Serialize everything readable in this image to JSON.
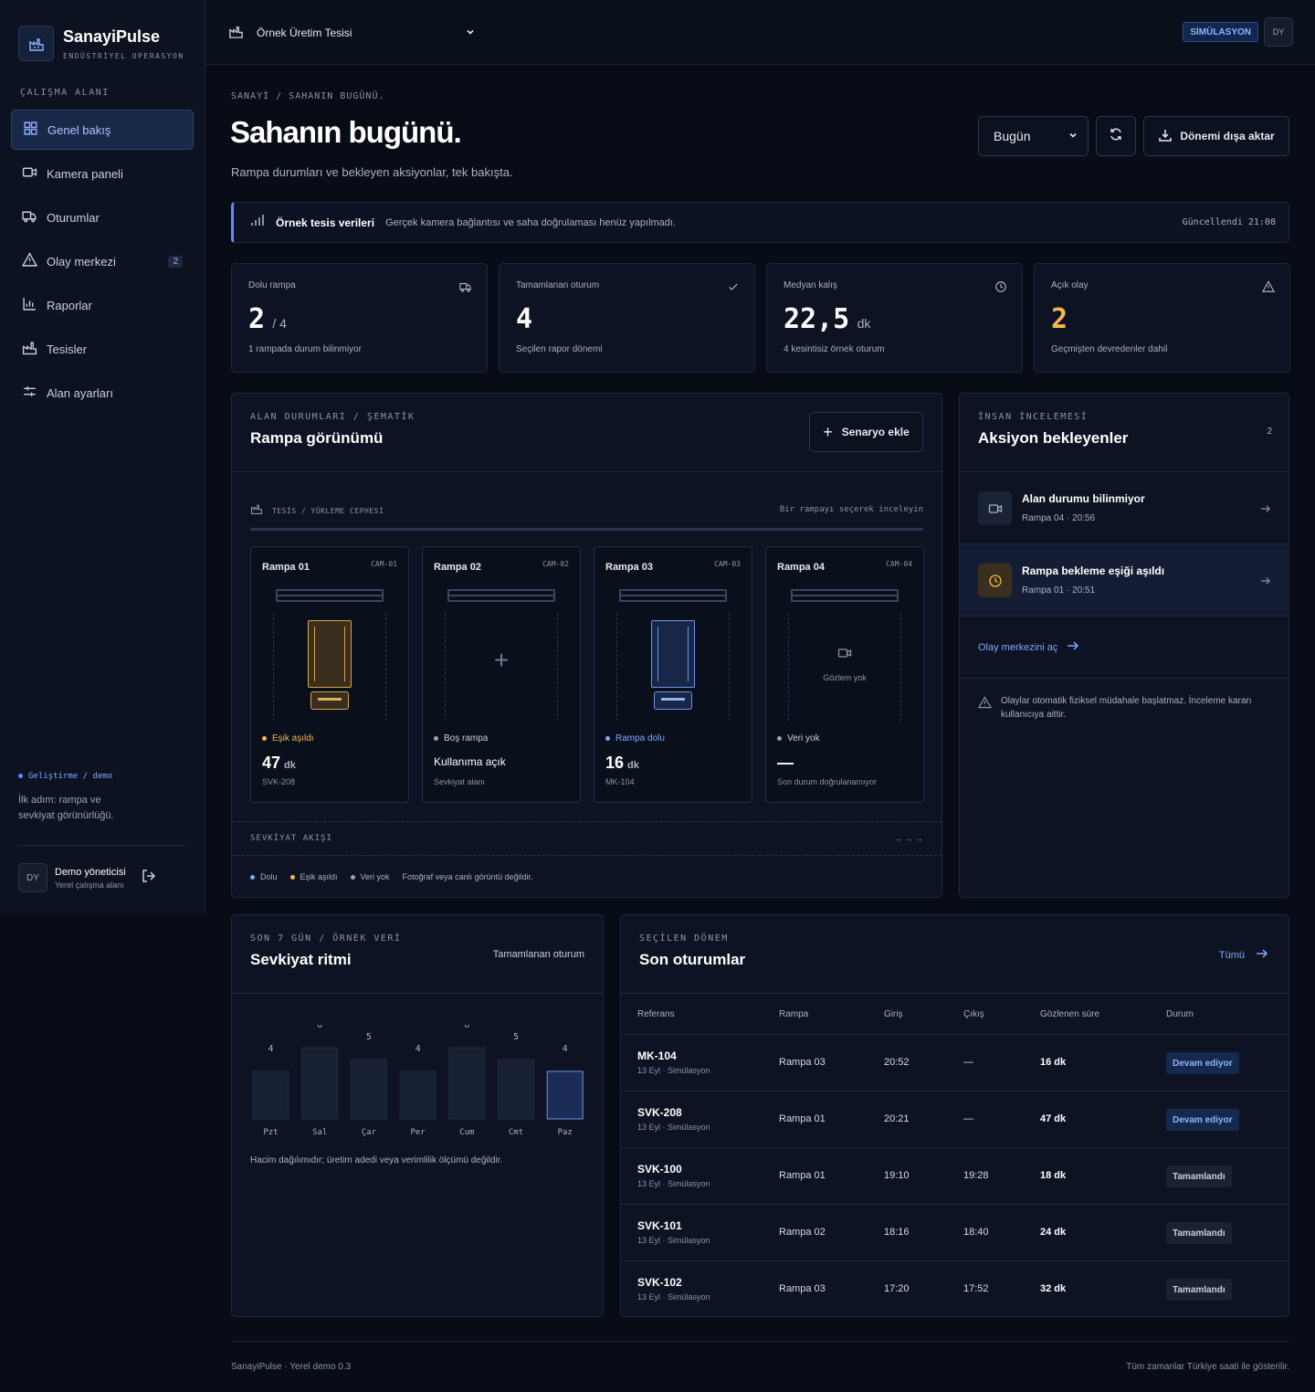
{
  "brand": {
    "name": "SanayiPulse",
    "subtitle": "ENDÜSTRİYEL OPERASYON"
  },
  "sidebar": {
    "section_label": "ÇALIŞMA ALANI",
    "items": [
      {
        "label": "Genel bakış",
        "icon": "grid-icon",
        "active": true
      },
      {
        "label": "Kamera paneli",
        "icon": "camera-icon"
      },
      {
        "label": "Oturumlar",
        "icon": "truck-icon"
      },
      {
        "label": "Olay merkezi",
        "icon": "alert-icon",
        "badge": "2"
      },
      {
        "label": "Raporlar",
        "icon": "bar-chart-icon"
      },
      {
        "label": "Tesisler",
        "icon": "factory-icon"
      },
      {
        "label": "Alan ayarları",
        "icon": "sliders-icon"
      }
    ],
    "env": "Geliştirme / demo",
    "env_note": "İlk adım: rampa ve sevkiyat görünürlüğü.",
    "user": {
      "initials": "DY",
      "name": "Demo yöneticisi",
      "role": "Yerel çalışma alanı"
    }
  },
  "topbar": {
    "site": "Örnek Üretim Tesisi",
    "sim": "SİMÜLASYON",
    "initials": "DY"
  },
  "page": {
    "breadcrumb": "SANAYİ / SAHANIN BUGÜNÜ.",
    "title": "Sahanın bugünü.",
    "subtitle": "Rampa durumları ve bekleyen aksiyonlar, tek bakışta.",
    "period": "Bugün",
    "export": "Dönemi dışa aktar"
  },
  "notice": {
    "title": "Örnek tesis verileri",
    "desc": "Gerçek kamera bağlantısı ve saha doğrulaması henüz yapılmadı.",
    "updated": "Güncellendi 21:08"
  },
  "stats": [
    {
      "label": "Dolu rampa",
      "value": "2",
      "suffix": "/ 4",
      "note": "1 rampada durum bilinmiyor",
      "icon": "truck-icon",
      "color": "#ffffff"
    },
    {
      "label": "Tamamlanan oturum",
      "value": "4",
      "suffix": "",
      "note": "Seçilen rapor dönemi",
      "icon": "check-icon",
      "color": "#ffffff"
    },
    {
      "label": "Medyan kalış",
      "value": "22,5",
      "suffix": "dk",
      "note": "4 kesintisiz örnek oturum",
      "icon": "clock-icon",
      "color": "#ffffff"
    },
    {
      "label": "Açık olay",
      "value": "2",
      "suffix": "",
      "note": "Geçmişten devredenler dahil",
      "icon": "alert-icon",
      "color": "#f5b84a"
    }
  ],
  "ramp_panel": {
    "kicker": "ALAN DURUMLARI / ŞEMATİK",
    "title": "Rampa görünümü",
    "add": "Senaryo ekle",
    "facade": "TESİS / YÜKLEME CEPHESİ",
    "hint": "Bir rampayı seçerek inceleyin",
    "ramps": [
      {
        "name": "Rampa 01",
        "cam": "CAM-01",
        "state": "Eşik aşıldı",
        "state_color": "#f5b84a",
        "value": "47",
        "unit": "dk",
        "ref": "SVK-208",
        "kind": "warn"
      },
      {
        "name": "Rampa 02",
        "cam": "CAM-02",
        "state": "Boş rampa",
        "state_color": "#9aa3b5",
        "value": "Kullanıma açık",
        "unit": "",
        "ref": "Sevkiyat alanı",
        "kind": "empty"
      },
      {
        "name": "Rampa 03",
        "cam": "CAM-03",
        "state": "Rampa dolu",
        "state_color": "#7fa8ff",
        "value": "16",
        "unit": "dk",
        "ref": "MK-104",
        "kind": "full"
      },
      {
        "name": "Rampa 04",
        "cam": "CAM-04",
        "state": "Veri yok",
        "state_color": "#9aa3b5",
        "value": "—",
        "unit": "",
        "ref": "Son durum doğrulanamıyor",
        "kind": "none",
        "nodata": "Gözlem yok"
      }
    ],
    "flow": "SEVKİYAT AKIŞI",
    "flow_arrows": "→ → →",
    "legend": [
      {
        "label": "Dolu",
        "color": "#7fa8ff"
      },
      {
        "label": "Eşik aşıldı",
        "color": "#f5b84a"
      },
      {
        "label": "Veri yok",
        "color": "#9aa3b5"
      }
    ],
    "legend_note": "Fotoğraf veya canlı görüntü değildir."
  },
  "actions": {
    "kicker": "İNSAN İNCELEMESİ",
    "title": "Aksiyon bekleyenler",
    "count": "2",
    "items": [
      {
        "title": "Alan durumu bilinmiyor",
        "meta": "Rampa 04 · 20:56",
        "icon": "camera-icon"
      },
      {
        "title": "Rampa bekleme eşiği aşıldı",
        "meta": "Rampa 01 · 20:51",
        "icon": "clock-icon"
      }
    ],
    "link": "Olay merkezini aç",
    "note": "Olaylar otomatik fiziksel müdahale başlatmaz. İnceleme kararı kullanıcıya aittir."
  },
  "rhythm": {
    "kicker": "SON 7 GÜN / ÖRNEK VERİ",
    "title": "Sevkiyat ritmi",
    "right": "Tamamlanan oturum",
    "note": "Hacim dağılımıdır; üretim adedi veya verimlilik ölçümü değildir."
  },
  "chart_data": {
    "type": "bar",
    "categories": [
      "Pzt",
      "Sal",
      "Çar",
      "Per",
      "Cum",
      "Cmt",
      "Paz"
    ],
    "values": [
      4,
      6,
      5,
      4,
      6,
      5,
      4
    ],
    "highlight_index": 6,
    "title": "Sevkiyat ritmi"
  },
  "sessions": {
    "kicker": "SEÇİLEN DÖNEM",
    "title": "Son oturumlar",
    "all": "Tümü",
    "headers": [
      "Referans",
      "Rampa",
      "Giriş",
      "Çıkış",
      "Gözlenen süre",
      "Durum"
    ],
    "rows": [
      {
        "ref": "MK-104",
        "sub": "13 Eyl · Simülasyon",
        "ramp": "Rampa 03",
        "in": "20:52",
        "out": "—",
        "dur": "16 dk",
        "status": "Devam ediyor",
        "active": true
      },
      {
        "ref": "SVK-208",
        "sub": "13 Eyl · Simülasyon",
        "ramp": "Rampa 01",
        "in": "20:21",
        "out": "—",
        "dur": "47 dk",
        "status": "Devam ediyor",
        "active": true
      },
      {
        "ref": "SVK-100",
        "sub": "13 Eyl · Simülasyon",
        "ramp": "Rampa 01",
        "in": "19:10",
        "out": "19:28",
        "dur": "18 dk",
        "status": "Tamamlandı",
        "active": false
      },
      {
        "ref": "SVK-101",
        "sub": "13 Eyl · Simülasyon",
        "ramp": "Rampa 02",
        "in": "18:16",
        "out": "18:40",
        "dur": "24 dk",
        "status": "Tamamlandı",
        "active": false
      },
      {
        "ref": "SVK-102",
        "sub": "13 Eyl · Simülasyon",
        "ramp": "Rampa 03",
        "in": "17:20",
        "out": "17:52",
        "dur": "32 dk",
        "status": "Tamamlandı",
        "active": false
      }
    ]
  },
  "footer": {
    "left": "SanayiPulse · Yerel demo 0.3",
    "right": "Tüm zamanlar Türkiye saati ile gösterilir."
  }
}
